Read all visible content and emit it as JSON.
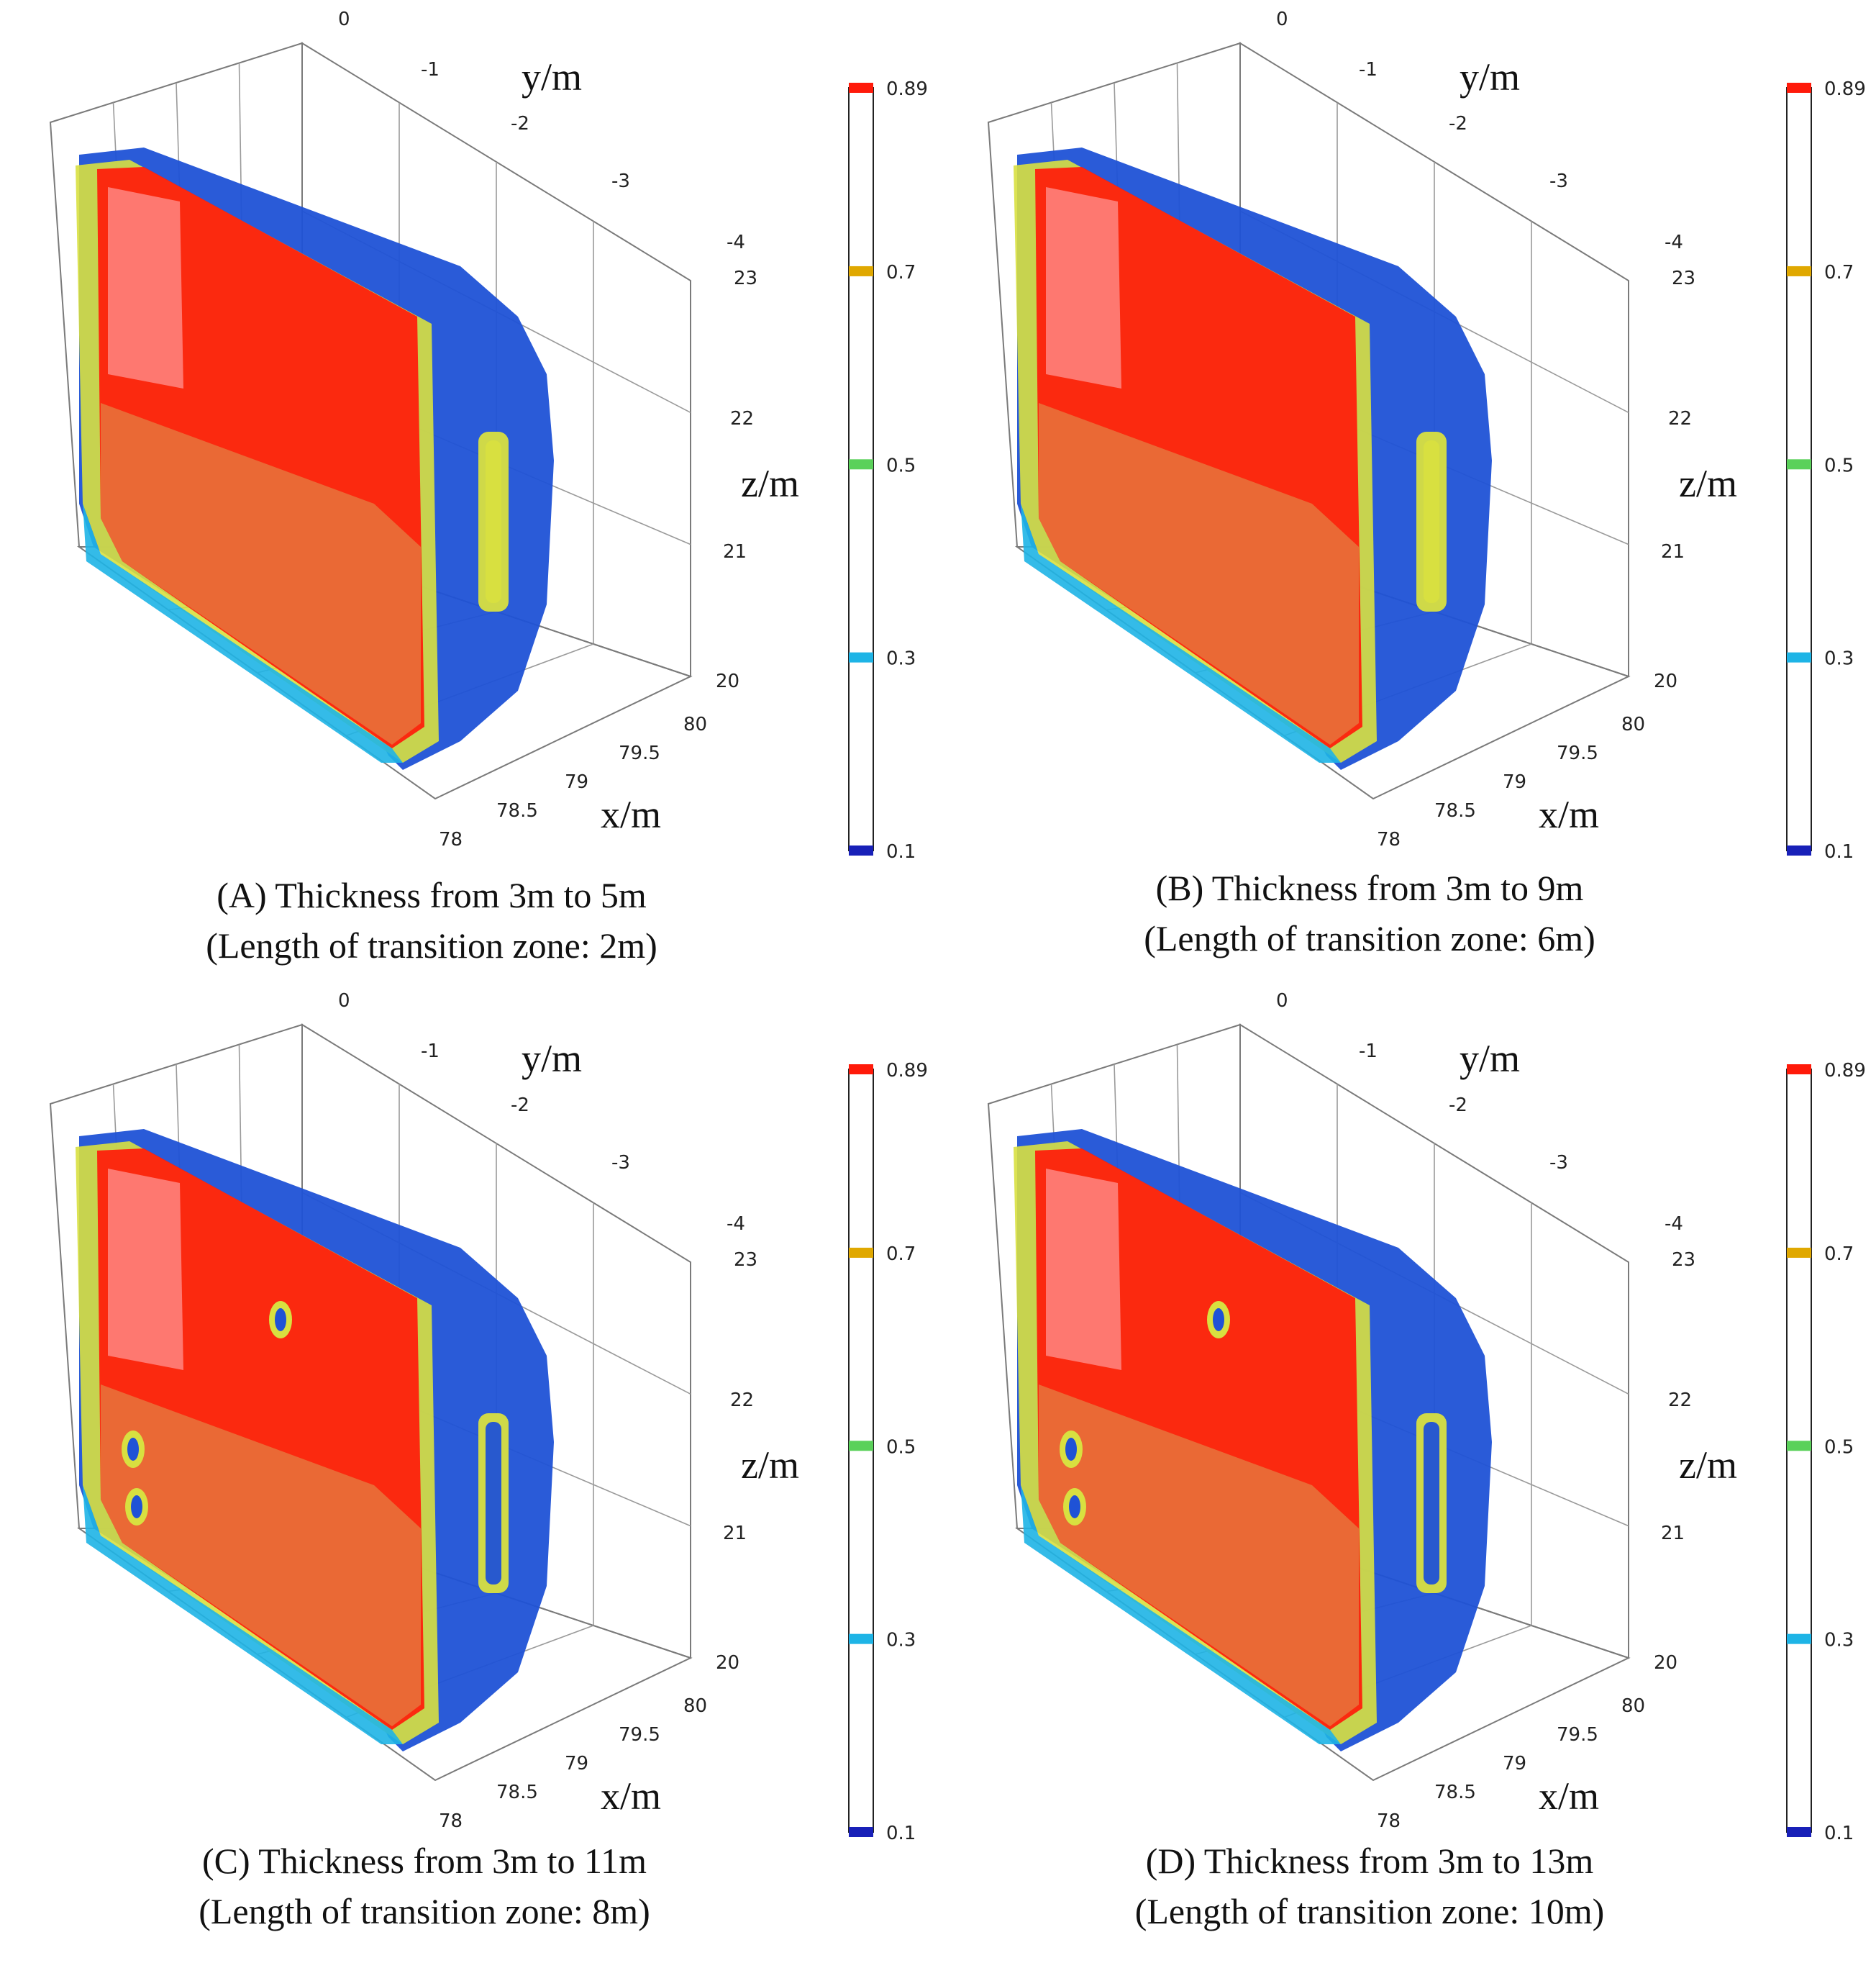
{
  "chart_data": [
    {
      "type": "heatmap",
      "panel_label": "(A)",
      "caption_line1": "(A) Thickness from 3m to 5m",
      "caption_line2": "(Length of transition zone: 2m)",
      "x_label": "x/m",
      "y_label": "y/m",
      "z_label": "z/m",
      "x_ticks": [
        "78",
        "78.5",
        "79",
        "79.5",
        "80"
      ],
      "y_ticks": [
        "0",
        "-1",
        "-2",
        "-3",
        "-4"
      ],
      "z_ticks": [
        "23",
        "22",
        "21",
        "20"
      ],
      "xlim": [
        78,
        80
      ],
      "ylim": [
        0,
        -4
      ],
      "zlim": [
        20,
        23
      ],
      "colorbar": {
        "ticks": [
          "0.89",
          "0.7",
          "0.5",
          "0.3",
          "0.1"
        ],
        "range": [
          0.1,
          0.89
        ]
      }
    },
    {
      "type": "heatmap",
      "panel_label": "(B)",
      "caption_line1": "(B) Thickness from 3m to 9m",
      "caption_line2": "(Length of transition zone: 6m)",
      "x_label": "x/m",
      "y_label": "y/m",
      "z_label": "z/m",
      "x_ticks": [
        "78",
        "78.5",
        "79",
        "79.5",
        "80"
      ],
      "y_ticks": [
        "0",
        "-1",
        "-2",
        "-3",
        "-4"
      ],
      "z_ticks": [
        "23",
        "22",
        "21",
        "20"
      ],
      "xlim": [
        78,
        80
      ],
      "ylim": [
        0,
        -4
      ],
      "zlim": [
        20,
        23
      ],
      "colorbar": {
        "ticks": [
          "0.89",
          "0.7",
          "0.5",
          "0.3",
          "0.1"
        ],
        "range": [
          0.1,
          0.89
        ]
      }
    },
    {
      "type": "heatmap",
      "panel_label": "(C)",
      "caption_line1": "(C) Thickness from 3m to 11m",
      "caption_line2": "(Length of transition zone: 8m)",
      "x_label": "x/m",
      "y_label": "y/m",
      "z_label": "z/m",
      "x_ticks": [
        "78",
        "78.5",
        "79",
        "79.5",
        "80"
      ],
      "y_ticks": [
        "0",
        "-1",
        "-2",
        "-3",
        "-4"
      ],
      "z_ticks": [
        "23",
        "22",
        "21",
        "20"
      ],
      "xlim": [
        78,
        80
      ],
      "ylim": [
        0,
        -4
      ],
      "zlim": [
        20,
        23
      ],
      "colorbar": {
        "ticks": [
          "0.89",
          "0.7",
          "0.5",
          "0.3",
          "0.1"
        ],
        "range": [
          0.1,
          0.89
        ]
      }
    },
    {
      "type": "heatmap",
      "panel_label": "(D)",
      "caption_line1": "(D) Thickness from 3m to 13m",
      "caption_line2": "(Length of transition zone: 10m)",
      "x_label": "x/m",
      "y_label": "y/m",
      "z_label": "z/m",
      "x_ticks": [
        "78",
        "78.5",
        "79",
        "79.5",
        "80"
      ],
      "y_ticks": [
        "0",
        "-1",
        "-2",
        "-3",
        "-4"
      ],
      "z_ticks": [
        "23",
        "22",
        "21",
        "20"
      ],
      "xlim": [
        78,
        80
      ],
      "ylim": [
        0,
        -4
      ],
      "zlim": [
        20,
        23
      ],
      "colorbar": {
        "ticks": [
          "0.89",
          "0.7",
          "0.5",
          "0.3",
          "0.1"
        ],
        "range": [
          0.1,
          0.89
        ]
      }
    }
  ],
  "colors": {
    "high": "#ff1a0a",
    "orange": "#e8703a",
    "yellow": "#d8e040",
    "green": "#5ad15a",
    "cyan": "#1eb4e6",
    "blue": "#1f52d6",
    "dark_blue": "#1820b8"
  }
}
